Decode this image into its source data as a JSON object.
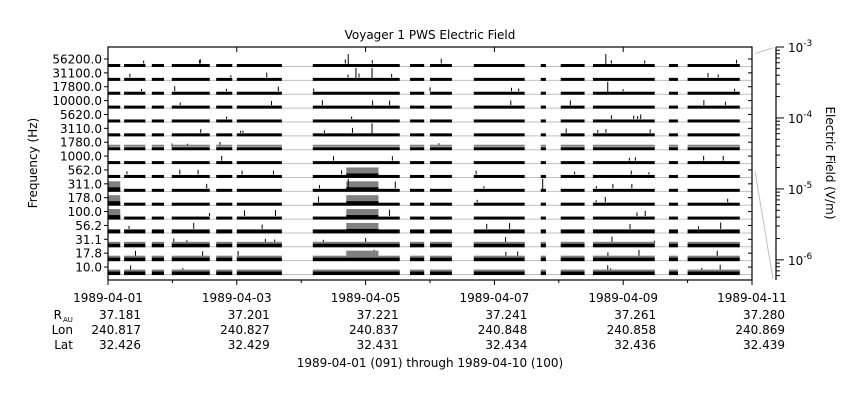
{
  "chart_data": {
    "type": "heatmap",
    "title": "Voyager 1 PWS Electric Field",
    "ylabel": "Frequency (Hz)",
    "colorbar_label": "Electric Field (V/m)",
    "colorbar_range": [
      5.2e-07,
      0.001
    ],
    "colorbar_ticks": [
      {
        "value": 0.001,
        "base": "10",
        "exp": "-3"
      },
      {
        "value": 0.0001,
        "base": "10",
        "exp": "-4"
      },
      {
        "value": 1e-05,
        "base": "10",
        "exp": "-5"
      },
      {
        "value": 1e-06,
        "base": "10",
        "exp": "-6"
      }
    ],
    "channel_threshold_range": [
      562.0,
      1000.0
    ],
    "frequencies": [
      "56200.0",
      "31100.0",
      "17800.0",
      "10000.0",
      "5620.0",
      "3110.0",
      "1780.0",
      "1000.0",
      "562.0",
      "311.0",
      "178.0",
      "100.0",
      "56.2",
      "31.1",
      "17.8",
      "10.0"
    ],
    "x_range_days": [
      0,
      10
    ],
    "x_ticks": [
      "1989-04-01",
      "1989-04-03",
      "1989-04-05",
      "1989-04-07",
      "1989-04-09",
      "1989-04-11"
    ],
    "ephemeris": {
      "rows": [
        {
          "label": "R",
          "sub": "AU",
          "values": [
            "37.181",
            "37.201",
            "37.221",
            "37.241",
            "37.261",
            "37.280"
          ]
        },
        {
          "label": "Lon",
          "sub": "",
          "values": [
            "240.817",
            "240.827",
            "240.837",
            "240.848",
            "240.858",
            "240.869"
          ]
        },
        {
          "label": "Lat",
          "sub": "",
          "values": [
            "32.426",
            "32.429",
            "32.431",
            "32.434",
            "32.436",
            "32.439"
          ]
        }
      ]
    },
    "xlabel": "1989-04-01 (091) through 1989-04-10 (100)",
    "data_segments_days": [
      [
        0.0,
        0.19
      ],
      [
        0.25,
        0.58
      ],
      [
        0.68,
        0.87
      ],
      [
        0.99,
        1.58
      ],
      [
        1.68,
        1.93
      ],
      [
        2.0,
        2.7
      ],
      [
        3.18,
        4.53
      ],
      [
        4.69,
        4.91
      ],
      [
        5.0,
        5.34
      ],
      [
        5.68,
        6.47
      ],
      [
        6.72,
        6.8
      ],
      [
        7.03,
        7.4
      ],
      [
        7.53,
        8.49
      ],
      [
        8.71,
        8.85
      ],
      [
        9.0,
        9.81
      ]
    ],
    "enhancements": [
      {
        "channels": [
          "311.0",
          "178.0",
          "100.0"
        ],
        "days": [
          0.0,
          0.19
        ],
        "level": "gray"
      },
      {
        "channels": [
          "562.0",
          "311.0",
          "178.0",
          "100.0",
          "56.2",
          "17.8"
        ],
        "days": [
          3.7,
          4.2
        ],
        "level": "gray"
      },
      {
        "channels": [
          "1780.0",
          "31.1",
          "17.8",
          "10.0"
        ],
        "days": [
          0.0,
          9.81
        ],
        "level": "gray-partial"
      }
    ],
    "colors": {
      "signal": "#000000",
      "enhanced": "#808080",
      "baseline": "#c0c0c0"
    }
  }
}
